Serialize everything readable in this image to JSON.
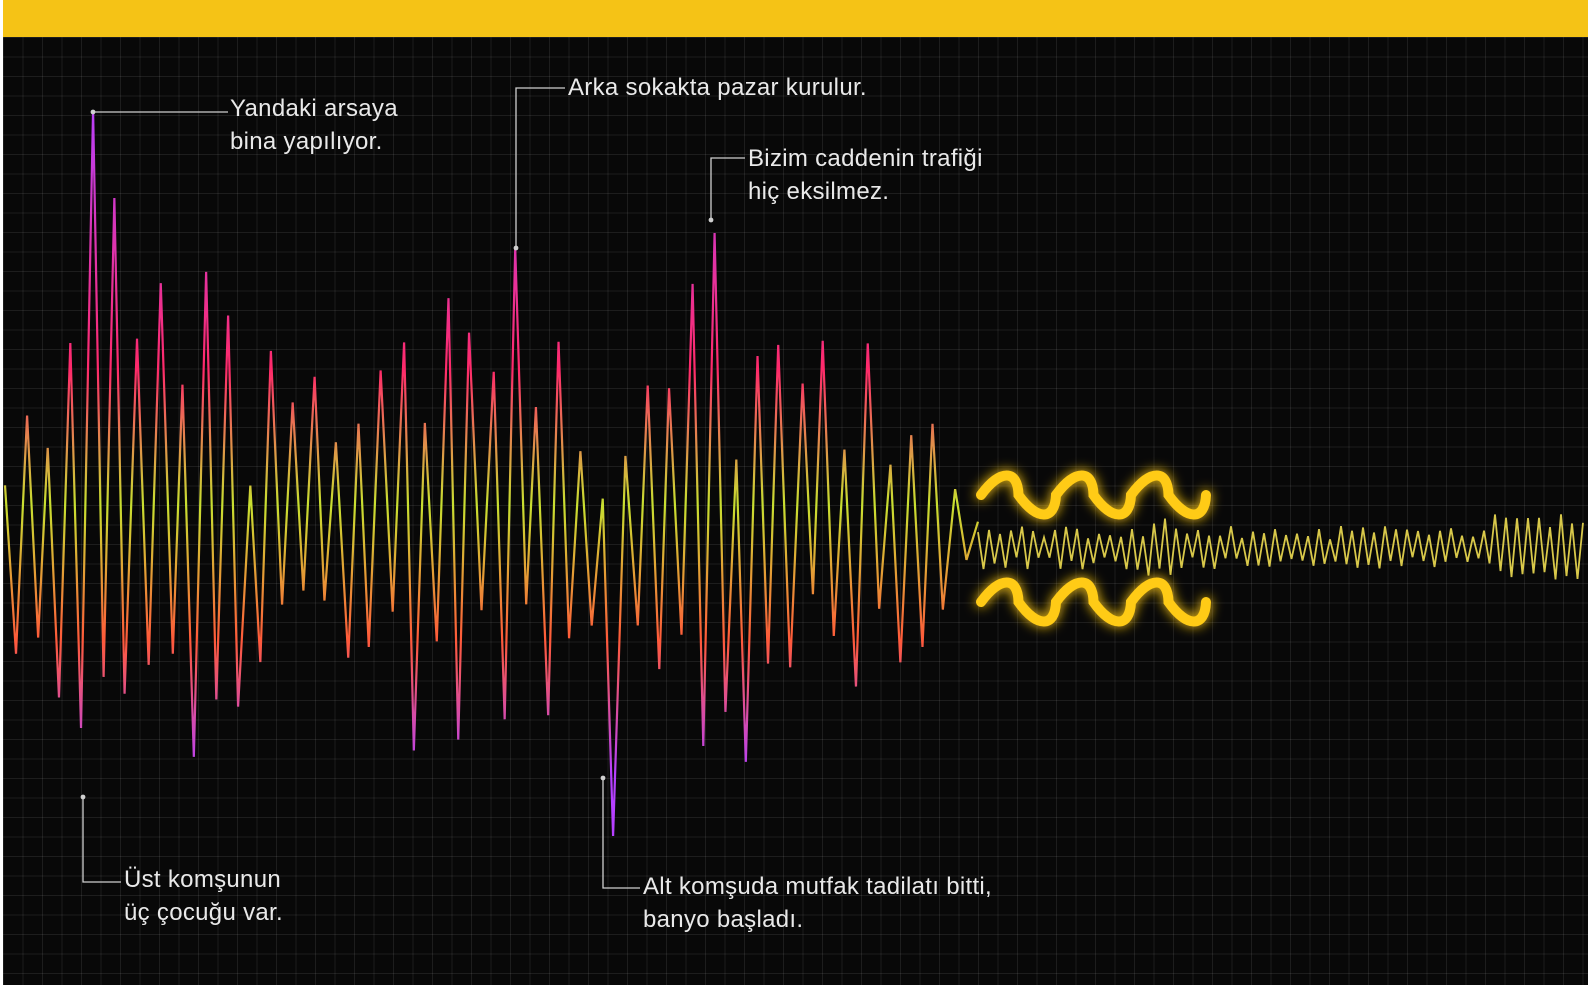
{
  "colors": {
    "top_bar": "#f5c316",
    "background": "#080808",
    "grid": "#2a2a2a",
    "wave_top": "#b640ff",
    "wave_upper": "#ff2a6a",
    "wave_mid": "#ff5a3a",
    "wave_center": "#c8e030",
    "quiet_wave": "#d8c84a",
    "symbol": "#ffcb16",
    "callout_text": "#e9e9e9",
    "leader_line": "#cfcfcf"
  },
  "symbol": {
    "name": "triple-tilde-icon"
  },
  "annotations": {
    "construction": {
      "line1": "Yandaki arsaya",
      "line2": "bina yapılıyor."
    },
    "market": {
      "line1": "Arka sokakta pazar kurulur."
    },
    "traffic": {
      "line1": "Bizim caddenin trafiği",
      "line2": "hiç eksilmez."
    },
    "children": {
      "line1": "Üst komşunun",
      "line2": "üç çocuğu var."
    },
    "renovation": {
      "line1": "Alt komşuda mutfak tadilatı bitti,",
      "line2": "banyo başladı."
    }
  }
}
